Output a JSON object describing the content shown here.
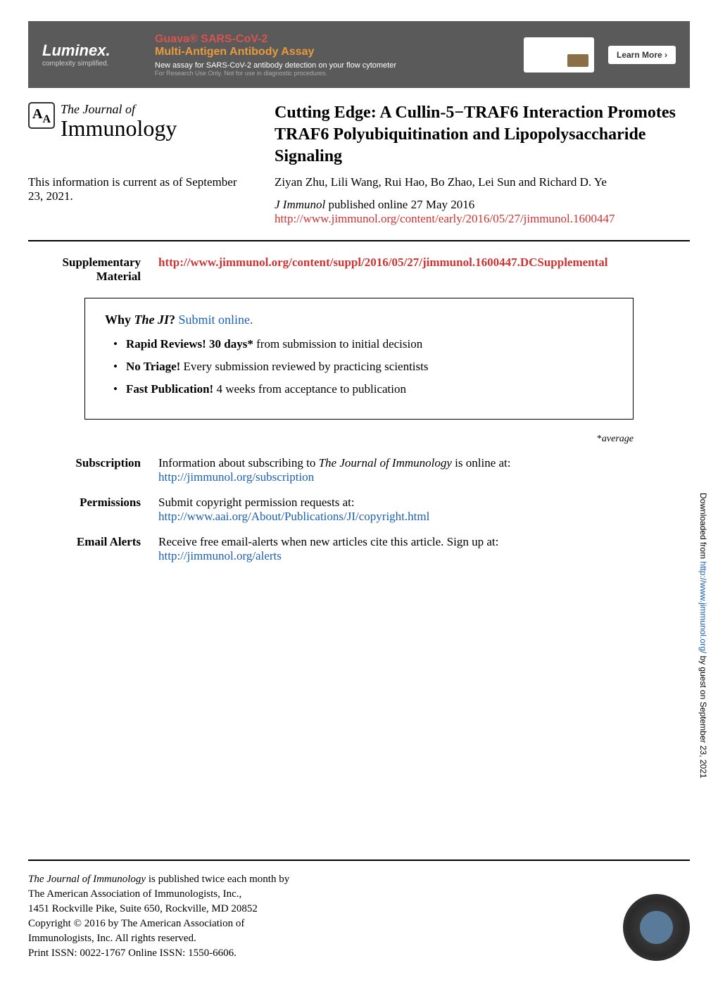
{
  "banner": {
    "logo_text": "Luminex.",
    "logo_sub": "complexity simplified.",
    "title_line1": "Guava® SARS-CoV-2",
    "title_line2": "Multi-Antigen Antibody Assay",
    "description": "New assay for SARS-CoV-2 antibody detection on your flow cytometer",
    "disclaimer": "For Research Use Only. Not for use in diagnostic procedures.",
    "button_label": "Learn More ›",
    "colors": {
      "background": "#5a5a5a",
      "title1": "#d9534f",
      "title2": "#e89a3c",
      "button_bg": "#ffffff"
    }
  },
  "journal_logo": {
    "line1": "The Journal of",
    "line2": "Immunology"
  },
  "article": {
    "title": "Cutting Edge: A Cullin-5−TRAF6 Interaction Promotes TRAF6 Polyubiquitination and Lipopolysaccharide Signaling",
    "authors": "Ziyan Zhu, Lili Wang, Rui Hao, Bo Zhao, Lei Sun and Richard D. Ye",
    "pub_journal": "J Immunol",
    "pub_info": " published online 27 May 2016",
    "doi_url": "http://www.jimmunol.org/content/early/2016/05/27/jimmunol.1600447"
  },
  "currency": "This information is current as of September 23, 2021.",
  "supplementary": {
    "label": "Supplementary Material",
    "url": "http://www.jimmunol.org/content/suppl/2016/05/27/jimmunol.1600447.DCSupplemental"
  },
  "why_box": {
    "prefix": "Why ",
    "ital": "The JI",
    "q": "? ",
    "link": "Submit online.",
    "items": [
      {
        "bold": "Rapid Reviews! 30 days*",
        "rest": " from submission to initial decision"
      },
      {
        "bold": "No Triage!",
        "rest": " Every submission reviewed by practicing scientists"
      },
      {
        "bold": "Fast Publication!",
        "rest": " 4 weeks from acceptance to publication"
      }
    ]
  },
  "average_note": {
    "star": "*",
    "text": "average"
  },
  "info_sections": {
    "subscription": {
      "label": "Subscription",
      "text_pre": "Information about subscribing to ",
      "ital": "The Journal of Immunology",
      "text_post": " is online at:",
      "link": "http://jimmunol.org/subscription"
    },
    "permissions": {
      "label": "Permissions",
      "text": "Submit copyright permission requests at:",
      "link": "http://www.aai.org/About/Publications/JI/copyright.html"
    },
    "email_alerts": {
      "label": "Email Alerts",
      "text": "Receive free email-alerts when new articles cite this article. Sign up at:",
      "link": "http://jimmunol.org/alerts"
    }
  },
  "side_text": {
    "pre": "Downloaded from ",
    "link": "http://www.jimmunol.org/",
    "post": " by guest on September 23, 2021"
  },
  "footer": {
    "line1_ital": "The Journal of Immunology",
    "line1_rest": " is published twice each month by",
    "line2": "The American Association of Immunologists, Inc.,",
    "line3": "1451 Rockville Pike, Suite 650, Rockville, MD 20852",
    "line4": "Copyright © 2016 by The American Association of",
    "line5": "Immunologists, Inc. All rights reserved.",
    "line6": "Print ISSN: 0022-1767 Online ISSN: 1550-6606."
  },
  "colors": {
    "link_red": "#cc3333",
    "link_blue": "#1a5fb4",
    "text": "#000000",
    "background": "#ffffff"
  },
  "typography": {
    "body_font": "Georgia, Times New Roman, serif",
    "title_size_pt": 18,
    "body_size_pt": 13,
    "footer_size_pt": 11
  }
}
